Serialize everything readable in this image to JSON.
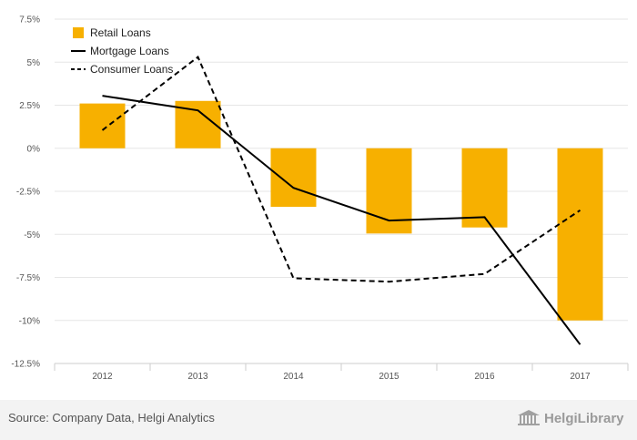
{
  "chart_data": {
    "type": "bar",
    "categories": [
      "2012",
      "2013",
      "2014",
      "2015",
      "2016",
      "2017"
    ],
    "series": [
      {
        "name": "Retail Loans",
        "kind": "bar",
        "values": [
          2.6,
          2.75,
          -3.4,
          -4.95,
          -4.6,
          -10.0
        ]
      },
      {
        "name": "Mortgage Loans",
        "kind": "line",
        "style": "solid",
        "values": [
          3.05,
          2.2,
          -2.3,
          -4.2,
          -4.0,
          -11.4
        ]
      },
      {
        "name": "Consumer Loans",
        "kind": "line",
        "style": "dashed",
        "values": [
          1.05,
          5.3,
          -7.55,
          -7.75,
          -7.3,
          -3.6
        ]
      }
    ],
    "yticks": [
      "7.5%",
      "5%",
      "2.5%",
      "0%",
      "-2.5%",
      "-5%",
      "-7.5%",
      "-10%",
      "-12.5%"
    ],
    "ytick_values": [
      7.5,
      5,
      2.5,
      0,
      -2.5,
      -5,
      -7.5,
      -10,
      -12.5
    ],
    "ylim": [
      -12.5,
      7.5
    ],
    "grid": true,
    "legend_position": "top-left",
    "colors": {
      "bar": "#f7b000",
      "line": "#000000",
      "grid": "#e6e6e6",
      "axis": "#cccccc"
    }
  },
  "footer": {
    "source": "Source: Company Data, Helgi Analytics",
    "logo_text": "HelgiLibrary"
  }
}
